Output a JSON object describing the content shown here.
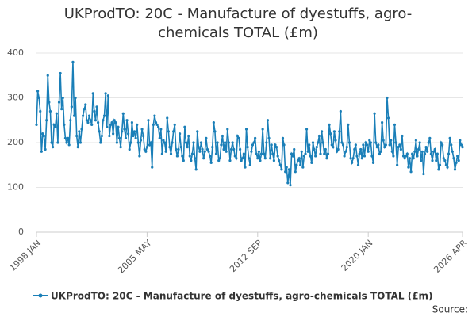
{
  "chart_data": {
    "type": "line",
    "title": "UKProdTO: 20C - Manufacture of dyestuffs, agro-chemicals TOTAL (£m)",
    "source": "Source:",
    "x": [
      "1998 JAN",
      "1998 FEB",
      "1998 MAR",
      "1998 APR",
      "1998 MAY",
      "1998 JUN",
      "1998 JUL",
      "1998 AUG",
      "1998 SEP",
      "1998 OCT",
      "1998 NOV",
      "1998 DEC",
      "1999 JAN",
      "1999 FEB",
      "1999 MAR",
      "1999 APR",
      "1999 MAY",
      "1999 JUN",
      "1999 JUL",
      "1999 AUG",
      "1999 SEP",
      "1999 OCT",
      "1999 NOV",
      "1999 DEC",
      "2000 JAN",
      "2000 FEB",
      "2000 MAR",
      "2000 APR",
      "2000 MAY",
      "2000 JUN",
      "2000 JUL",
      "2000 AUG",
      "2000 SEP",
      "2000 OCT",
      "2000 NOV",
      "2000 DEC",
      "2001 JAN",
      "2001 FEB",
      "2001 MAR",
      "2001 APR",
      "2001 MAY",
      "2001 JUN",
      "2001 JUL",
      "2001 AUG",
      "2001 SEP",
      "2001 OCT",
      "2001 NOV",
      "2001 DEC",
      "2002 JAN",
      "2002 FEB",
      "2002 MAR",
      "2002 APR",
      "2002 MAY",
      "2002 JUN",
      "2002 JUL",
      "2002 AUG",
      "2002 SEP",
      "2002 OCT",
      "2002 NOV",
      "2002 DEC",
      "2003 JAN",
      "2003 FEB",
      "2003 MAR",
      "2003 APR",
      "2003 MAY",
      "2003 JUN",
      "2003 JUL",
      "2003 AUG",
      "2003 SEP",
      "2003 OCT",
      "2003 NOV",
      "2003 DEC",
      "2004 JAN",
      "2004 FEB",
      "2004 MAR",
      "2004 APR",
      "2004 MAY",
      "2004 JUN",
      "2004 JUL",
      "2004 AUG",
      "2004 SEP",
      "2004 OCT",
      "2004 NOV",
      "2004 DEC",
      "2005 JAN",
      "2005 FEB",
      "2005 MAR",
      "2005 APR",
      "2005 MAY",
      "2005 JUN",
      "2005 JUL",
      "2005 AUG",
      "2005 SEP",
      "2005 OCT",
      "2005 NOV",
      "2005 DEC",
      "2006 JAN",
      "2006 FEB",
      "2006 MAR",
      "2006 APR",
      "2006 MAY",
      "2006 JUN",
      "2006 JUL",
      "2006 AUG",
      "2006 SEP",
      "2006 OCT",
      "2006 NOV",
      "2006 DEC",
      "2007 JAN",
      "2007 FEB",
      "2007 MAR",
      "2007 APR",
      "2007 MAY",
      "2007 JUN",
      "2007 JUL",
      "2007 AUG",
      "2007 SEP",
      "2007 OCT",
      "2007 NOV",
      "2007 DEC",
      "2008 JAN",
      "2008 FEB",
      "2008 MAR",
      "2008 APR",
      "2008 MAY",
      "2008 JUN",
      "2008 JUL",
      "2008 AUG",
      "2008 SEP",
      "2008 OCT",
      "2008 NOV",
      "2008 DEC",
      "2009 JAN",
      "2009 FEB",
      "2009 MAR",
      "2009 APR",
      "2009 MAY",
      "2009 JUN",
      "2009 JUL",
      "2009 AUG",
      "2009 SEP",
      "2009 OCT",
      "2009 NOV",
      "2009 DEC",
      "2010 JAN",
      "2010 FEB",
      "2010 MAR",
      "2010 APR",
      "2010 MAY",
      "2010 JUN",
      "2010 JUL",
      "2010 AUG",
      "2010 SEP",
      "2010 OCT",
      "2010 NOV",
      "2010 DEC",
      "2011 JAN",
      "2011 FEB",
      "2011 MAR",
      "2011 APR",
      "2011 MAY",
      "2011 JUN",
      "2011 JUL",
      "2011 AUG",
      "2011 SEP",
      "2011 OCT",
      "2011 NOV",
      "2011 DEC",
      "2012 JAN",
      "2012 FEB",
      "2012 MAR",
      "2012 APR",
      "2012 MAY",
      "2012 JUN",
      "2012 JUL",
      "2012 AUG",
      "2012 SEP",
      "2012 OCT",
      "2012 NOV",
      "2012 DEC",
      "2013 JAN",
      "2013 FEB",
      "2013 MAR",
      "2013 APR",
      "2013 MAY",
      "2013 JUN",
      "2013 JUL",
      "2013 AUG",
      "2013 SEP",
      "2013 OCT",
      "2013 NOV",
      "2013 DEC",
      "2014 JAN",
      "2014 FEB",
      "2014 MAR",
      "2014 APR",
      "2014 MAY",
      "2014 JUN",
      "2014 JUL",
      "2014 AUG",
      "2014 SEP",
      "2014 OCT",
      "2014 NOV",
      "2014 DEC",
      "2015 JAN",
      "2015 FEB",
      "2015 MAR",
      "2015 APR",
      "2015 MAY",
      "2015 JUN",
      "2015 JUL",
      "2015 AUG",
      "2015 SEP",
      "2015 OCT",
      "2015 NOV",
      "2015 DEC",
      "2016 JAN",
      "2016 FEB",
      "2016 MAR",
      "2016 APR",
      "2016 MAY",
      "2016 JUN",
      "2016 JUL",
      "2016 AUG",
      "2016 SEP",
      "2016 OCT",
      "2016 NOV",
      "2016 DEC",
      "2017 JAN",
      "2017 FEB",
      "2017 MAR",
      "2017 APR",
      "2017 MAY",
      "2017 JUN",
      "2017 JUL",
      "2017 AUG",
      "2017 SEP",
      "2017 OCT",
      "2017 NOV",
      "2017 DEC",
      "2018 JAN",
      "2018 FEB",
      "2018 MAR",
      "2018 APR",
      "2018 MAY",
      "2018 JUN",
      "2018 JUL",
      "2018 AUG",
      "2018 SEP",
      "2018 OCT",
      "2018 NOV",
      "2018 DEC",
      "2019 JAN",
      "2019 FEB",
      "2019 MAR",
      "2019 APR",
      "2019 MAY",
      "2019 JUN",
      "2019 JUL",
      "2019 AUG",
      "2019 SEP",
      "2019 OCT",
      "2019 NOV",
      "2019 DEC",
      "2020 JAN",
      "2020 FEB",
      "2020 MAR",
      "2020 APR",
      "2020 MAY",
      "2020 JUN",
      "2020 JUL",
      "2020 AUG",
      "2020 SEP",
      "2020 OCT",
      "2020 NOV",
      "2020 DEC",
      "2021 JAN",
      "2021 FEB",
      "2021 MAR",
      "2021 APR",
      "2021 MAY",
      "2021 JUN",
      "2021 JUL",
      "2021 AUG",
      "2021 SEP",
      "2021 OCT",
      "2021 NOV",
      "2021 DEC",
      "2022 JAN",
      "2022 FEB",
      "2022 MAR",
      "2022 APR",
      "2022 MAY",
      "2022 JUN",
      "2022 JUL",
      "2022 AUG",
      "2022 SEP",
      "2022 OCT",
      "2022 NOV",
      "2022 DEC",
      "2023 JAN",
      "2023 FEB",
      "2023 MAR",
      "2023 APR",
      "2023 MAY",
      "2023 JUN",
      "2023 JUL",
      "2023 AUG",
      "2023 SEP",
      "2023 OCT",
      "2023 NOV",
      "2023 DEC",
      "2024 JAN",
      "2024 FEB",
      "2024 MAR",
      "2024 APR",
      "2024 MAY",
      "2024 JUN",
      "2024 JUL",
      "2024 AUG",
      "2024 SEP",
      "2024 OCT",
      "2024 NOV",
      "2024 DEC",
      "2025 JAN",
      "2025 FEB",
      "2025 MAR",
      "2025 APR",
      "2025 MAY",
      "2025 JUN",
      "2025 JUL",
      "2025 AUG",
      "2025 SEP",
      "2025 OCT",
      "2025 NOV",
      "2025 DEC",
      "2026 JAN",
      "2026 FEB",
      "2026 MAR",
      "2026 APR"
    ],
    "xticks": [
      "1998 JAN",
      "2005 MAY",
      "2012 SEP",
      "2020 JAN",
      "2026 APR"
    ],
    "series": [
      {
        "name": "UKProdTO: 20C - Manufacture of dyestuffs, agro-chemicals TOTAL (£m)",
        "color": "#1a7fb8",
        "values": [
          240,
          315,
          300,
          270,
          180,
          220,
          215,
          185,
          250,
          350,
          290,
          270,
          200,
          190,
          240,
          235,
          265,
          200,
          290,
          355,
          275,
          300,
          240,
          210,
          200,
          210,
          195,
          250,
          280,
          380,
          260,
          300,
          215,
          190,
          225,
          200,
          230,
          260,
          275,
          285,
          250,
          245,
          260,
          250,
          240,
          310,
          270,
          250,
          280,
          245,
          225,
          200,
          215,
          250,
          260,
          310,
          235,
          305,
          215,
          240,
          245,
          220,
          250,
          245,
          200,
          235,
          210,
          190,
          225,
          265,
          230,
          210,
          250,
          220,
          185,
          200,
          245,
          215,
          225,
          210,
          240,
          200,
          170,
          205,
          230,
          215,
          185,
          180,
          190,
          250,
          195,
          200,
          145,
          240,
          260,
          245,
          240,
          235,
          210,
          230,
          175,
          205,
          200,
          180,
          255,
          225,
          190,
          175,
          200,
          225,
          240,
          185,
          170,
          185,
          220,
          190,
          170,
          160,
          235,
          200,
          190,
          215,
          170,
          160,
          175,
          200,
          165,
          140,
          225,
          190,
          180,
          200,
          185,
          165,
          180,
          210,
          185,
          180,
          170,
          155,
          190,
          245,
          225,
          175,
          200,
          160,
          165,
          195,
          215,
          185,
          200,
          180,
          230,
          200,
          160,
          185,
          200,
          185,
          170,
          165,
          215,
          210,
          185,
          160,
          165,
          175,
          145,
          230,
          190,
          165,
          150,
          180,
          195,
          200,
          210,
          175,
          165,
          180,
          160,
          175,
          230,
          175,
          165,
          200,
          250,
          210,
          165,
          195,
          175,
          160,
          195,
          190,
          170,
          160,
          150,
          140,
          210,
          195,
          135,
          145,
          110,
          140,
          105,
          175,
          170,
          185,
          135,
          150,
          160,
          165,
          150,
          180,
          145,
          170,
          175,
          230,
          180,
          195,
          170,
          155,
          200,
          185,
          170,
          190,
          200,
          215,
          175,
          225,
          200,
          175,
          185,
          165,
          175,
          240,
          220,
          195,
          190,
          225,
          205,
          180,
          185,
          225,
          270,
          200,
          195,
          170,
          180,
          190,
          240,
          200,
          165,
          155,
          165,
          185,
          195,
          170,
          150,
          175,
          185,
          165,
          195,
          170,
          200,
          195,
          180,
          205,
          200,
          170,
          155,
          265,
          200,
          190,
          195,
          175,
          180,
          245,
          205,
          190,
          195,
          300,
          255,
          195,
          205,
          180,
          170,
          240,
          200,
          150,
          190,
          195,
          185,
          215,
          170,
          165,
          170,
          175,
          145,
          165,
          135,
          175,
          165,
          180,
          205,
          170,
          185,
          200,
          160,
          180,
          130,
          175,
          190,
          180,
          200,
          210,
          175,
          160,
          180,
          185,
          160,
          175,
          140,
          150,
          200,
          195,
          165,
          160,
          150,
          145,
          175,
          210,
          195,
          180,
          165,
          140,
          155,
          170,
          160,
          205,
          195,
          190
        ]
      }
    ],
    "ylim": [
      0,
      400
    ],
    "yticks": [
      0,
      100,
      200,
      300,
      400
    ],
    "grid": true
  }
}
